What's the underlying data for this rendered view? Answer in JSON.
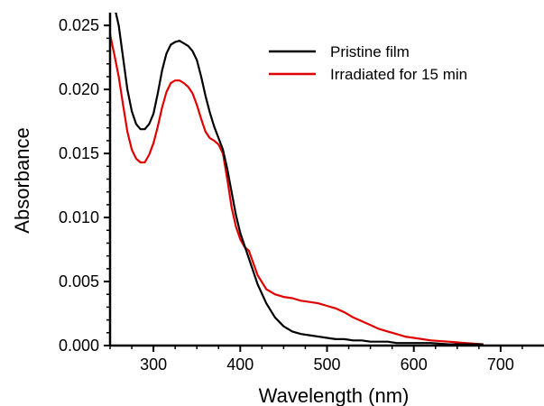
{
  "chart_data": {
    "type": "line",
    "title": "",
    "xlabel": "Wavelength (nm)",
    "ylabel": "Absorbance",
    "xlim": [
      250,
      750
    ],
    "ylim": [
      0,
      0.026
    ],
    "x_ticks": [
      300,
      400,
      500,
      600,
      700
    ],
    "x_tick_labels": [
      "300",
      "400",
      "500",
      "600",
      "700"
    ],
    "y_ticks": [
      0,
      0.005,
      0.01,
      0.015,
      0.02,
      0.025
    ],
    "y_tick_labels": [
      "0.000",
      "0.005",
      "0.010",
      "0.015",
      "0.020",
      "0.025"
    ],
    "grid": false,
    "legend_position": "top-right",
    "series": [
      {
        "name": "Pristine film",
        "color": "#000000",
        "x": [
          250,
          255,
          260,
          265,
          270,
          275,
          280,
          285,
          290,
          295,
          300,
          305,
          310,
          315,
          320,
          325,
          330,
          335,
          340,
          345,
          350,
          355,
          360,
          365,
          370,
          375,
          380,
          385,
          390,
          395,
          400,
          405,
          410,
          420,
          430,
          440,
          450,
          460,
          470,
          480,
          490,
          500,
          510,
          520,
          530,
          540,
          550,
          560,
          570,
          580,
          590,
          600,
          620,
          640,
          660,
          680
        ],
        "y": [
          0.0275,
          0.0265,
          0.025,
          0.0225,
          0.02,
          0.0183,
          0.0173,
          0.0169,
          0.0169,
          0.0173,
          0.0181,
          0.0197,
          0.0215,
          0.0228,
          0.0235,
          0.0237,
          0.0238,
          0.0236,
          0.0234,
          0.023,
          0.0223,
          0.021,
          0.0195,
          0.0182,
          0.0171,
          0.0162,
          0.0153,
          0.0138,
          0.012,
          0.0102,
          0.0088,
          0.0078,
          0.0068,
          0.0048,
          0.0033,
          0.0022,
          0.0015,
          0.0011,
          0.0009,
          0.0008,
          0.0007,
          0.0006,
          0.0005,
          0.0005,
          0.0004,
          0.0004,
          0.0003,
          0.0003,
          0.0003,
          0.0002,
          0.0002,
          0.0002,
          0.0002,
          0.0001,
          0.0001,
          0.0001
        ]
      },
      {
        "name": "Irradiated for 15 min",
        "color": "#e00000",
        "x": [
          250,
          255,
          260,
          265,
          270,
          275,
          280,
          285,
          290,
          295,
          300,
          305,
          310,
          315,
          320,
          325,
          330,
          335,
          340,
          345,
          350,
          355,
          360,
          365,
          370,
          375,
          380,
          385,
          390,
          395,
          400,
          405,
          410,
          420,
          430,
          440,
          450,
          460,
          470,
          480,
          490,
          500,
          510,
          520,
          530,
          540,
          550,
          560,
          570,
          580,
          590,
          600,
          620,
          640,
          660,
          680
        ],
        "y": [
          0.0243,
          0.0227,
          0.021,
          0.0188,
          0.0167,
          0.0153,
          0.0146,
          0.0143,
          0.0143,
          0.0149,
          0.0158,
          0.0171,
          0.0186,
          0.0198,
          0.0205,
          0.0207,
          0.0207,
          0.0205,
          0.0202,
          0.0197,
          0.0188,
          0.0177,
          0.0167,
          0.0162,
          0.016,
          0.0157,
          0.015,
          0.013,
          0.0108,
          0.0093,
          0.0083,
          0.0077,
          0.0074,
          0.0055,
          0.0044,
          0.004,
          0.0038,
          0.0037,
          0.0035,
          0.0034,
          0.0033,
          0.0031,
          0.0029,
          0.0026,
          0.0022,
          0.0019,
          0.0016,
          0.0013,
          0.0011,
          0.0009,
          0.0007,
          0.0006,
          0.0004,
          0.0003,
          0.0002,
          0.0001
        ]
      }
    ]
  }
}
